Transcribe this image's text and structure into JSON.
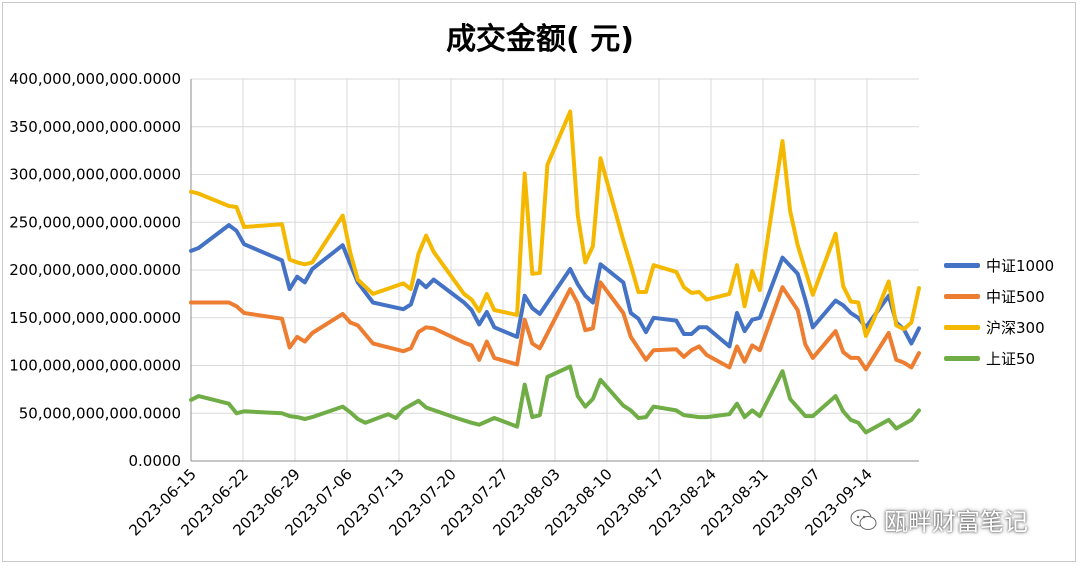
{
  "chart_data": {
    "type": "line",
    "title": "成交金额( 元)",
    "ylim": [
      0,
      400000000000
    ],
    "ytick_labels": [
      "0.0000",
      "50,000,000,000.0000",
      "100,000,000,000.0000",
      "150,000,000,000.0000",
      "200,000,000,000.0000",
      "250,000,000,000.0000",
      "300,000,000,000.0000",
      "350,000,000,000.0000",
      "400,000,000,000.0000"
    ],
    "xtick_labels": [
      "2023-06-15",
      "2023-06-22",
      "2023-06-29",
      "2023-07-06",
      "2023-07-13",
      "2023-07-20",
      "2023-07-27",
      "2023-08-03",
      "2023-08-10",
      "2023-08-17",
      "2023-08-24",
      "2023-08-31",
      "2023-09-07",
      "2023-09-14"
    ],
    "grid": true,
    "legend_position": "right",
    "series": [
      {
        "name": "中证1000",
        "color": "#4472C4",
        "points": [
          [
            0,
            220
          ],
          [
            1,
            223
          ],
          [
            5,
            247
          ],
          [
            6,
            241
          ],
          [
            7,
            227
          ],
          [
            12,
            210
          ],
          [
            13,
            180
          ],
          [
            14,
            193
          ],
          [
            15,
            187
          ],
          [
            16,
            201
          ],
          [
            20,
            226
          ],
          [
            21,
            206
          ],
          [
            22,
            187
          ],
          [
            24,
            166
          ],
          [
            28,
            159
          ],
          [
            29,
            164
          ],
          [
            30,
            189
          ],
          [
            31,
            182
          ],
          [
            32,
            190
          ],
          [
            36,
            166
          ],
          [
            37,
            158
          ],
          [
            38,
            143
          ],
          [
            39,
            156
          ],
          [
            40,
            140
          ],
          [
            43,
            130
          ],
          [
            44,
            173
          ],
          [
            45,
            160
          ],
          [
            46,
            154
          ],
          [
            50,
            201
          ],
          [
            51,
            185
          ],
          [
            52,
            173
          ],
          [
            53,
            166
          ],
          [
            54,
            206
          ],
          [
            57,
            187
          ],
          [
            58,
            155
          ],
          [
            59,
            149
          ],
          [
            60,
            135
          ],
          [
            61,
            150
          ],
          [
            64,
            147
          ],
          [
            65,
            133
          ],
          [
            66,
            133
          ],
          [
            67,
            140
          ],
          [
            68,
            140
          ],
          [
            71,
            120
          ],
          [
            72,
            155
          ],
          [
            73,
            136
          ],
          [
            74,
            148
          ],
          [
            75,
            150
          ],
          [
            78,
            213
          ],
          [
            80,
            196
          ],
          [
            81,
            169
          ],
          [
            82,
            140
          ],
          [
            85,
            168
          ],
          [
            86,
            163
          ],
          [
            87,
            155
          ],
          [
            88,
            150
          ],
          [
            89,
            140
          ],
          [
            92,
            173
          ],
          [
            93,
            145
          ],
          [
            94,
            138
          ],
          [
            95,
            123
          ],
          [
            96,
            139
          ]
        ]
      },
      {
        "name": "中证500",
        "color": "#ED7D31",
        "points": [
          [
            0,
            166
          ],
          [
            5,
            166
          ],
          [
            6,
            162
          ],
          [
            7,
            155
          ],
          [
            12,
            149
          ],
          [
            13,
            119
          ],
          [
            14,
            130
          ],
          [
            15,
            125
          ],
          [
            16,
            134
          ],
          [
            20,
            154
          ],
          [
            21,
            145
          ],
          [
            22,
            142
          ],
          [
            24,
            123
          ],
          [
            28,
            115
          ],
          [
            29,
            118
          ],
          [
            30,
            135
          ],
          [
            31,
            140
          ],
          [
            32,
            139
          ],
          [
            36,
            124
          ],
          [
            37,
            121
          ],
          [
            38,
            106
          ],
          [
            39,
            125
          ],
          [
            40,
            108
          ],
          [
            43,
            101
          ],
          [
            44,
            148
          ],
          [
            45,
            123
          ],
          [
            46,
            118
          ],
          [
            50,
            180
          ],
          [
            51,
            165
          ],
          [
            52,
            137
          ],
          [
            53,
            139
          ],
          [
            54,
            187
          ],
          [
            57,
            155
          ],
          [
            58,
            130
          ],
          [
            59,
            118
          ],
          [
            60,
            106
          ],
          [
            61,
            116
          ],
          [
            64,
            117
          ],
          [
            65,
            109
          ],
          [
            66,
            116
          ],
          [
            67,
            120
          ],
          [
            68,
            111
          ],
          [
            71,
            98
          ],
          [
            72,
            120
          ],
          [
            73,
            104
          ],
          [
            74,
            121
          ],
          [
            75,
            116
          ],
          [
            78,
            182
          ],
          [
            80,
            158
          ],
          [
            81,
            122
          ],
          [
            82,
            108
          ],
          [
            85,
            136
          ],
          [
            86,
            114
          ],
          [
            87,
            108
          ],
          [
            88,
            108
          ],
          [
            89,
            96
          ],
          [
            92,
            134
          ],
          [
            93,
            106
          ],
          [
            94,
            103
          ],
          [
            95,
            98
          ],
          [
            96,
            113
          ]
        ]
      },
      {
        "name": "沪深300",
        "color": "#F5B800",
        "points": [
          [
            0,
            282
          ],
          [
            1,
            280
          ],
          [
            5,
            267
          ],
          [
            6,
            266
          ],
          [
            7,
            245
          ],
          [
            12,
            248
          ],
          [
            13,
            211
          ],
          [
            14,
            208
          ],
          [
            15,
            206
          ],
          [
            16,
            208
          ],
          [
            20,
            257
          ],
          [
            21,
            218
          ],
          [
            22,
            190
          ],
          [
            24,
            175
          ],
          [
            28,
            186
          ],
          [
            29,
            180
          ],
          [
            30,
            217
          ],
          [
            31,
            236
          ],
          [
            32,
            219
          ],
          [
            36,
            175
          ],
          [
            37,
            169
          ],
          [
            38,
            157
          ],
          [
            39,
            175
          ],
          [
            40,
            158
          ],
          [
            43,
            153
          ],
          [
            44,
            301
          ],
          [
            45,
            196
          ],
          [
            46,
            197
          ],
          [
            47,
            310
          ],
          [
            50,
            366
          ],
          [
            51,
            257
          ],
          [
            52,
            208
          ],
          [
            53,
            225
          ],
          [
            54,
            317
          ],
          [
            57,
            231
          ],
          [
            58,
            205
          ],
          [
            59,
            177
          ],
          [
            60,
            177
          ],
          [
            61,
            205
          ],
          [
            64,
            198
          ],
          [
            65,
            182
          ],
          [
            66,
            176
          ],
          [
            67,
            177
          ],
          [
            68,
            169
          ],
          [
            71,
            175
          ],
          [
            72,
            205
          ],
          [
            73,
            162
          ],
          [
            74,
            199
          ],
          [
            75,
            179
          ],
          [
            78,
            335
          ],
          [
            79,
            262
          ],
          [
            80,
            226
          ],
          [
            82,
            174
          ],
          [
            85,
            238
          ],
          [
            86,
            183
          ],
          [
            87,
            167
          ],
          [
            88,
            166
          ],
          [
            89,
            131
          ],
          [
            90,
            148
          ],
          [
            92,
            188
          ],
          [
            93,
            142
          ],
          [
            94,
            138
          ],
          [
            95,
            145
          ],
          [
            96,
            181
          ]
        ]
      },
      {
        "name": "上证50",
        "color": "#70AD47",
        "points": [
          [
            0,
            64
          ],
          [
            1,
            68
          ],
          [
            5,
            60
          ],
          [
            6,
            50
          ],
          [
            7,
            52
          ],
          [
            12,
            50
          ],
          [
            13,
            47
          ],
          [
            14,
            46
          ],
          [
            15,
            44
          ],
          [
            16,
            46
          ],
          [
            20,
            57
          ],
          [
            21,
            51
          ],
          [
            22,
            44
          ],
          [
            23,
            40
          ],
          [
            26,
            49
          ],
          [
            27,
            45
          ],
          [
            28,
            54
          ],
          [
            30,
            63
          ],
          [
            31,
            56
          ],
          [
            35,
            45
          ],
          [
            37,
            40
          ],
          [
            38,
            38
          ],
          [
            40,
            45
          ],
          [
            43,
            36
          ],
          [
            44,
            80
          ],
          [
            45,
            46
          ],
          [
            46,
            48
          ],
          [
            47,
            88
          ],
          [
            50,
            99
          ],
          [
            51,
            68
          ],
          [
            52,
            57
          ],
          [
            53,
            65
          ],
          [
            54,
            85
          ],
          [
            57,
            58
          ],
          [
            58,
            53
          ],
          [
            59,
            45
          ],
          [
            60,
            46
          ],
          [
            61,
            57
          ],
          [
            64,
            53
          ],
          [
            65,
            48
          ],
          [
            66,
            47
          ],
          [
            67,
            46
          ],
          [
            68,
            46
          ],
          [
            71,
            49
          ],
          [
            72,
            60
          ],
          [
            73,
            46
          ],
          [
            74,
            53
          ],
          [
            75,
            47
          ],
          [
            78,
            94
          ],
          [
            79,
            65
          ],
          [
            81,
            47
          ],
          [
            82,
            47
          ],
          [
            85,
            68
          ],
          [
            86,
            52
          ],
          [
            87,
            43
          ],
          [
            88,
            40
          ],
          [
            89,
            30
          ],
          [
            92,
            43
          ],
          [
            93,
            34
          ],
          [
            95,
            43
          ],
          [
            96,
            53
          ]
        ]
      }
    ]
  },
  "watermark": {
    "text": "瓯畔财富笔记"
  }
}
